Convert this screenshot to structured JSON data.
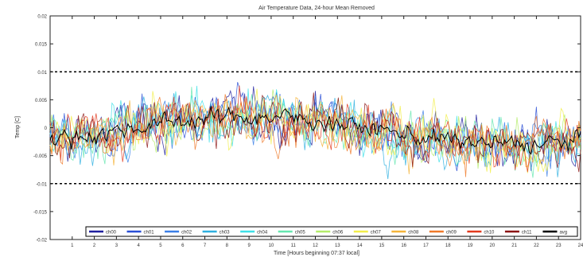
{
  "chart_data": {
    "type": "line",
    "title": "Air Temperature Data, 24-hour Mean Removed",
    "xlabel": "Time [Hours beginning 07:37 local]",
    "ylabel": "Temp [C]",
    "xlim": [
      0,
      24
    ],
    "ylim": [
      -0.02,
      0.02
    ],
    "x_ticks": [
      1,
      2,
      3,
      4,
      5,
      6,
      7,
      8,
      9,
      10,
      11,
      12,
      13,
      14,
      15,
      16,
      17,
      18,
      19,
      20,
      21,
      22,
      23,
      24
    ],
    "y_ticks": [
      -0.02,
      -0.015,
      -0.01,
      -0.005,
      0,
      0.005,
      0.01,
      0.015,
      0.02
    ],
    "y_tick_labels": [
      "-0.02",
      "-0.015",
      "-0.01",
      "-0.005",
      "0",
      "0.005",
      "0.01",
      "0.015",
      "0.02"
    ],
    "reference_lines": [
      0.01,
      -0.01
    ],
    "grid": false,
    "legend_position": "bottom",
    "series": [
      {
        "name": "ch00",
        "color": "#1f1f9e"
      },
      {
        "name": "ch01",
        "color": "#2a4fd6"
      },
      {
        "name": "ch02",
        "color": "#3a7fe8"
      },
      {
        "name": "ch03",
        "color": "#2fb0e0"
      },
      {
        "name": "ch04",
        "color": "#3fe0e8"
      },
      {
        "name": "ch05",
        "color": "#66e8b0"
      },
      {
        "name": "ch06",
        "color": "#b4ec6a"
      },
      {
        "name": "ch07",
        "color": "#f2ee4a"
      },
      {
        "name": "ch08",
        "color": "#f5b43a"
      },
      {
        "name": "ch09",
        "color": "#f07a2a"
      },
      {
        "name": "ch10",
        "color": "#e23a1e"
      },
      {
        "name": "ch11",
        "color": "#8c1414"
      },
      {
        "name": "avg",
        "color": "#000000"
      }
    ]
  }
}
